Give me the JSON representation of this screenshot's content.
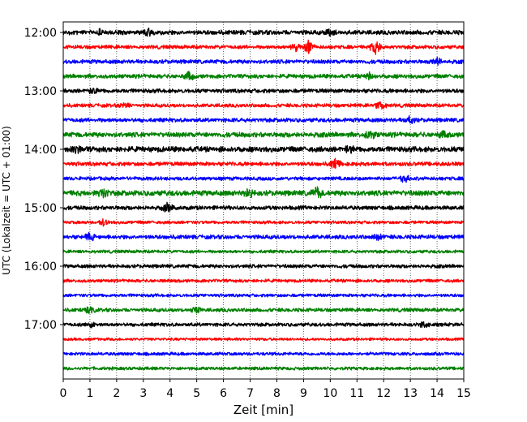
{
  "chart_data": {
    "type": "line",
    "title": "",
    "xlabel": "Zeit  [min]",
    "ylabel": "UTC (Lokalzeit = UTC + 01:00)",
    "xlim": [
      0,
      15
    ],
    "x_ticks": [
      "0",
      "1",
      "2",
      "3",
      "4",
      "5",
      "6",
      "7",
      "8",
      "9",
      "10",
      "11",
      "12",
      "13",
      "14",
      "15"
    ],
    "y_ticks": [
      {
        "label": "12:00",
        "row": 0
      },
      {
        "label": "13:00",
        "row": 4
      },
      {
        "label": "14:00",
        "row": 8
      },
      {
        "label": "15:00",
        "row": 12
      },
      {
        "label": "16:00",
        "row": 16
      },
      {
        "label": "17:00",
        "row": 20
      }
    ],
    "grid": "vertical dotted at each minute",
    "row_interval_minutes": 15,
    "color_cycle": [
      "#000000",
      "#ff0000",
      "#0000ff",
      "#008000"
    ],
    "rows": [
      {
        "start": "12:00",
        "color": "#000000",
        "amp": 1.0,
        "events": [
          {
            "t": 1.3,
            "a": 1.6
          },
          {
            "t": 3.2,
            "a": 1.3
          },
          {
            "t": 10.0,
            "a": 1.4
          }
        ]
      },
      {
        "start": "12:15",
        "color": "#ff0000",
        "amp": 0.8,
        "events": [
          {
            "t": 8.7,
            "a": 1.8
          },
          {
            "t": 9.2,
            "a": 3.5
          },
          {
            "t": 11.7,
            "a": 4.0
          }
        ]
      },
      {
        "start": "12:30",
        "color": "#0000ff",
        "amp": 0.9,
        "events": [
          {
            "t": 14.0,
            "a": 2.0
          }
        ]
      },
      {
        "start": "12:45",
        "color": "#008000",
        "amp": 0.9,
        "events": [
          {
            "t": 4.7,
            "a": 2.0
          },
          {
            "t": 11.5,
            "a": 1.6
          }
        ]
      },
      {
        "start": "13:00",
        "color": "#000000",
        "amp": 0.9,
        "events": [
          {
            "t": 1.1,
            "a": 1.5
          }
        ]
      },
      {
        "start": "13:15",
        "color": "#ff0000",
        "amp": 0.8,
        "events": [
          {
            "t": 2.3,
            "a": 1.8
          },
          {
            "t": 11.9,
            "a": 2.0
          }
        ]
      },
      {
        "start": "13:30",
        "color": "#0000ff",
        "amp": 0.9,
        "events": [
          {
            "t": 13.0,
            "a": 1.8
          }
        ]
      },
      {
        "start": "13:45",
        "color": "#008000",
        "amp": 1.1,
        "events": [
          {
            "t": 11.5,
            "a": 2.0
          },
          {
            "t": 14.2,
            "a": 1.5
          }
        ]
      },
      {
        "start": "14:00",
        "color": "#000000",
        "amp": 1.2,
        "events": [
          {
            "t": 0.5,
            "a": 1.6
          },
          {
            "t": 10.7,
            "a": 1.6
          }
        ]
      },
      {
        "start": "14:15",
        "color": "#ff0000",
        "amp": 0.9,
        "events": [
          {
            "t": 10.2,
            "a": 2.5
          }
        ]
      },
      {
        "start": "14:30",
        "color": "#0000ff",
        "amp": 0.8,
        "events": [
          {
            "t": 12.8,
            "a": 2.0
          }
        ]
      },
      {
        "start": "14:45",
        "color": "#008000",
        "amp": 1.2,
        "events": [
          {
            "t": 1.5,
            "a": 1.8
          },
          {
            "t": 7.0,
            "a": 2.0
          },
          {
            "t": 9.5,
            "a": 2.6
          }
        ]
      },
      {
        "start": "15:00",
        "color": "#000000",
        "amp": 0.9,
        "events": [
          {
            "t": 3.9,
            "a": 2.5
          }
        ]
      },
      {
        "start": "15:15",
        "color": "#ff0000",
        "amp": 0.7,
        "events": [
          {
            "t": 1.5,
            "a": 1.5
          }
        ]
      },
      {
        "start": "15:30",
        "color": "#0000ff",
        "amp": 0.9,
        "events": [
          {
            "t": 1.0,
            "a": 1.8
          },
          {
            "t": 11.8,
            "a": 1.6
          }
        ]
      },
      {
        "start": "15:45",
        "color": "#008000",
        "amp": 0.7,
        "events": []
      },
      {
        "start": "16:00",
        "color": "#000000",
        "amp": 0.8,
        "events": []
      },
      {
        "start": "16:15",
        "color": "#ff0000",
        "amp": 0.7,
        "events": []
      },
      {
        "start": "16:30",
        "color": "#0000ff",
        "amp": 0.7,
        "events": []
      },
      {
        "start": "16:45",
        "color": "#008000",
        "amp": 0.8,
        "events": [
          {
            "t": 1.0,
            "a": 1.5
          },
          {
            "t": 5.0,
            "a": 1.5
          }
        ]
      },
      {
        "start": "17:00",
        "color": "#000000",
        "amp": 0.8,
        "events": [
          {
            "t": 1.0,
            "a": 1.4
          },
          {
            "t": 13.5,
            "a": 1.4
          }
        ]
      },
      {
        "start": "17:15",
        "color": "#ff0000",
        "amp": 0.6,
        "events": []
      },
      {
        "start": "17:30",
        "color": "#0000ff",
        "amp": 0.7,
        "events": []
      },
      {
        "start": "17:45",
        "color": "#008000",
        "amp": 0.7,
        "events": []
      }
    ]
  }
}
